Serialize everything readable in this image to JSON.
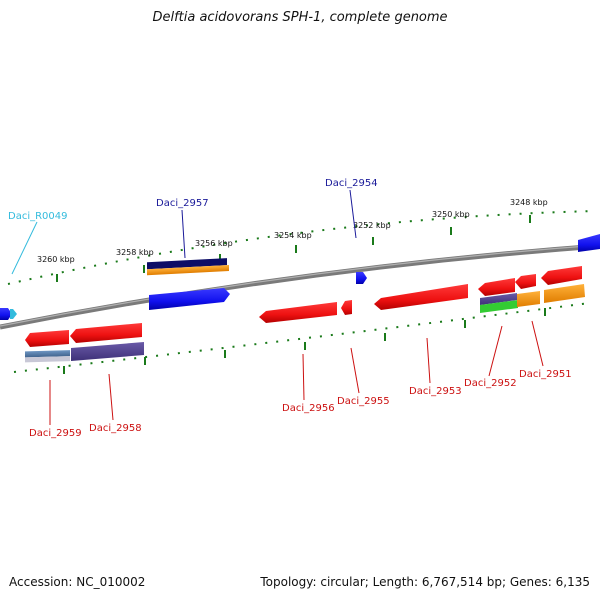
{
  "title": "Delftia acidovorans SPH-1, complete genome",
  "footer": {
    "accession": "Accession: NC_010002",
    "topology": "Topology: circular; Length: 6,767,514 bp; Genes: 6,135"
  },
  "kbp_ticks": [
    "3260 kbp",
    "3258 kbp",
    "3256 kbp",
    "3254 kbp",
    "3252 kbp",
    "3250 kbp",
    "3248 kbp"
  ],
  "genes": [
    {
      "name": "Daci_R0049",
      "color": "#33bbdd"
    },
    {
      "name": "Daci_2957",
      "color": "#1a1a99"
    },
    {
      "name": "Daci_2954",
      "color": "#1a1a99"
    },
    {
      "name": "Daci_2959",
      "color": "#cc1111"
    },
    {
      "name": "Daci_2958",
      "color": "#cc1111"
    },
    {
      "name": "Daci_2956",
      "color": "#cc1111"
    },
    {
      "name": "Daci_2955",
      "color": "#cc1111"
    },
    {
      "name": "Daci_2953",
      "color": "#cc1111"
    },
    {
      "name": "Daci_2952",
      "color": "#cc1111"
    },
    {
      "name": "Daci_2951",
      "color": "#cc1111"
    }
  ],
  "colors": {
    "backbone": "#7a7a7a",
    "forward_gene": "#1515ee",
    "reverse_gene": "#ee1515",
    "tick_green": "#1a7a1a",
    "orange": "#ff9900",
    "navy": "#0d0d66",
    "purple": "#55448f",
    "steel": "#5a7fa8",
    "lime": "#33cc33"
  }
}
